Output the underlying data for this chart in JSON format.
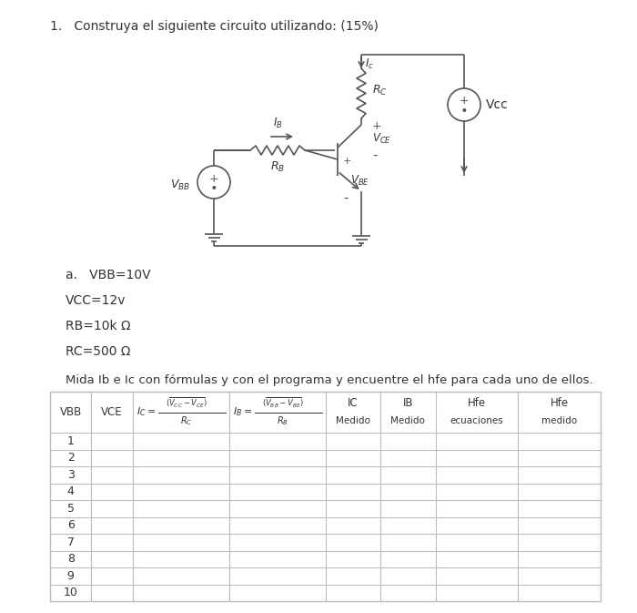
{
  "title": "1.   Construya el siguiente circuito utilizando: (15%)",
  "params_label_a": "a.   VBB=10V",
  "params_label_b": "VCC=12v",
  "params_label_c": "RB=10k Ω",
  "params_label_d": "RC=500 Ω",
  "table_instruction": "Mida Ib e Ic con fórmulas y con el programa y encuentre el hfe para cada uno de ellos.",
  "row_labels": [
    "1",
    "2",
    "3",
    "4",
    "5",
    "6",
    "7",
    "8",
    "9",
    "10"
  ],
  "bg_color": "#ffffff",
  "text_color": "#333333",
  "circuit_color": "#555555",
  "table_line_color": "#bbbbbb",
  "font_size": 10
}
